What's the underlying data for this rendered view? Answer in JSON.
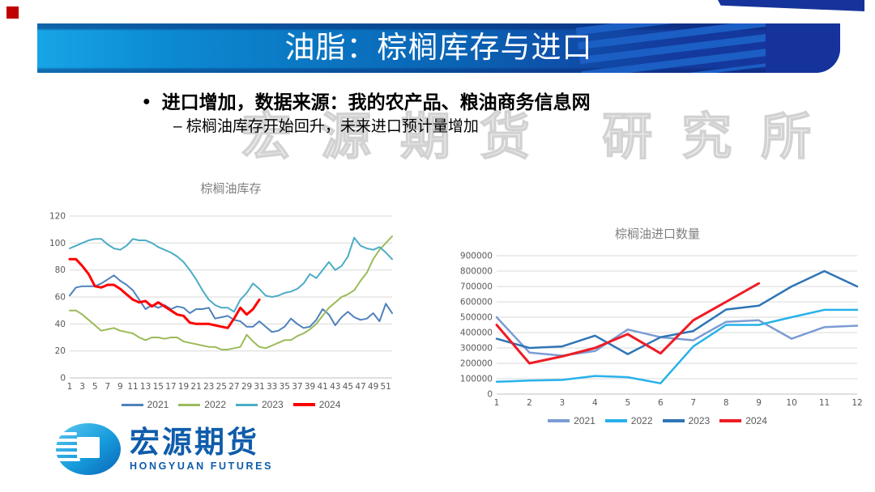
{
  "header": {
    "title": "油脂：棕榈库存与进口"
  },
  "bullets": {
    "main": "进口增加，数据来源：我的农产品、粮油商务信息网",
    "sub": "– 棕榈油库存开始回升，未来进口预计量增加"
  },
  "watermark": {
    "text": "宏源期货 研究所"
  },
  "logo": {
    "name_cn": "宏源期货",
    "name_en": "HONGYUAN FUTURES"
  },
  "chart_data": [
    {
      "id": "palm-oil-inventory",
      "type": "line",
      "title": "棕榈油库存",
      "xlabel": "",
      "ylabel": "",
      "grid": true,
      "legend_position": "bottom",
      "ylim": [
        0,
        120
      ],
      "ytick_step": 20,
      "x": [
        1,
        2,
        3,
        4,
        5,
        6,
        7,
        8,
        9,
        10,
        11,
        12,
        13,
        14,
        15,
        16,
        17,
        18,
        19,
        20,
        21,
        22,
        23,
        24,
        25,
        26,
        27,
        28,
        29,
        30,
        31,
        32,
        33,
        34,
        35,
        36,
        37,
        38,
        39,
        40,
        41,
        42,
        43,
        44,
        45,
        46,
        47,
        48,
        49,
        50,
        51,
        52
      ],
      "xtick_labels": [
        "1",
        "3",
        "5",
        "7",
        "9",
        "11",
        "13",
        "15",
        "17",
        "19",
        "21",
        "23",
        "25",
        "27",
        "29",
        "31",
        "33",
        "35",
        "37",
        "39",
        "41",
        "43",
        "45",
        "47",
        "49",
        "51"
      ],
      "series": [
        {
          "name": "2021",
          "color": "#4f81bd",
          "width": 2,
          "values": [
            61,
            67,
            68,
            68,
            68,
            70,
            73,
            76,
            72,
            69,
            65,
            58,
            51,
            54,
            52,
            54,
            51,
            53,
            52,
            48,
            51,
            51,
            52,
            44,
            45,
            46,
            43,
            42,
            38,
            38,
            42,
            38,
            34,
            35,
            38,
            44,
            40,
            37,
            38,
            43,
            51,
            47,
            39,
            45,
            49,
            45,
            43,
            44,
            48,
            42,
            55,
            48
          ]
        },
        {
          "name": "2022",
          "color": "#9bbb59",
          "width": 2,
          "values": [
            50,
            50,
            47,
            43,
            39,
            35,
            36,
            37,
            35,
            34,
            33,
            30,
            28,
            30,
            30,
            29,
            30,
            30,
            27,
            26,
            25,
            24,
            23,
            23,
            21,
            21,
            22,
            23,
            32,
            27,
            23,
            22,
            24,
            26,
            28,
            28,
            31,
            33,
            36,
            40,
            46,
            52,
            56,
            60,
            62,
            65,
            72,
            78,
            88,
            95,
            100,
            105
          ]
        },
        {
          "name": "2023",
          "color": "#4bacc6",
          "width": 2,
          "values": [
            96,
            98,
            100,
            102,
            103,
            103,
            99,
            96,
            95,
            98,
            103,
            102,
            102,
            100,
            97,
            95,
            93,
            90,
            86,
            80,
            73,
            65,
            58,
            54,
            52,
            52,
            49,
            58,
            63,
            70,
            66,
            61,
            60,
            61,
            63,
            64,
            66,
            70,
            77,
            74,
            80,
            86,
            80,
            83,
            90,
            104,
            98,
            96,
            95,
            97,
            93,
            88
          ]
        },
        {
          "name": "2024",
          "color": "#ff0000",
          "width": 3,
          "values": [
            88,
            88,
            83,
            77,
            68,
            67,
            69,
            69,
            66,
            62,
            58,
            56,
            57,
            53,
            56,
            53,
            50,
            47,
            46,
            41,
            40,
            40,
            40,
            39,
            38,
            37,
            44,
            52,
            47,
            51,
            58
          ]
        }
      ]
    },
    {
      "id": "palm-oil-imports",
      "type": "line",
      "title": "棕榈油进口数量",
      "xlabel": "",
      "ylabel": "",
      "grid": true,
      "legend_position": "bottom",
      "ylim": [
        0,
        900000
      ],
      "ytick_step": 100000,
      "x": [
        1,
        2,
        3,
        4,
        5,
        6,
        7,
        8,
        9,
        10,
        11,
        12
      ],
      "xtick_labels": [
        "1",
        "2",
        "3",
        "4",
        "5",
        "6",
        "7",
        "8",
        "9",
        "10",
        "11",
        "12"
      ],
      "series": [
        {
          "name": "2021",
          "color": "#7c9cd3",
          "width": 2.5,
          "values": [
            500000,
            270000,
            250000,
            280000,
            420000,
            370000,
            350000,
            470000,
            480000,
            360000,
            435000,
            445000
          ]
        },
        {
          "name": "2022",
          "color": "#27b2ea",
          "width": 2.5,
          "values": [
            80000,
            88000,
            92000,
            118000,
            110000,
            70000,
            310000,
            450000,
            450000,
            500000,
            548000,
            548000
          ]
        },
        {
          "name": "2023",
          "color": "#2e75b6",
          "width": 2.5,
          "values": [
            360000,
            300000,
            310000,
            380000,
            260000,
            370000,
            410000,
            550000,
            575000,
            700000,
            800000,
            700000
          ]
        },
        {
          "name": "2024",
          "color": "#ee1c25",
          "width": 3,
          "values": [
            450000,
            200000,
            245000,
            300000,
            390000,
            265000,
            480000,
            600000,
            720000
          ]
        }
      ]
    }
  ]
}
